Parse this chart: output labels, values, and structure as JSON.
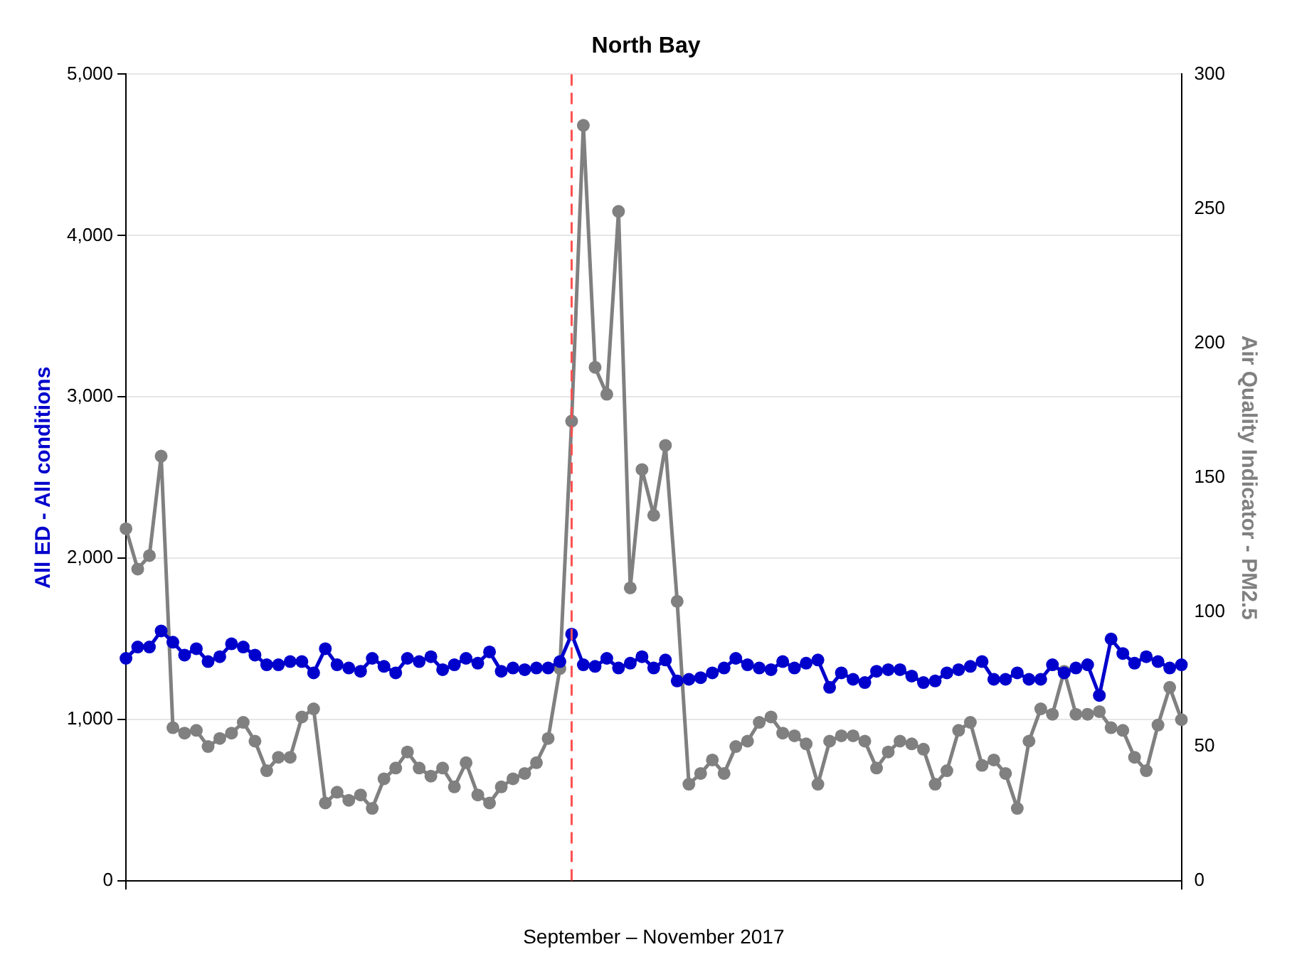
{
  "chart_data": {
    "type": "line",
    "title": "North Bay",
    "xlabel": "September – November 2017",
    "ylabel": "All ED - All conditions",
    "y2label": "Air Quality Indicator - PM2.5",
    "categories": [
      null,
      null,
      null,
      null,
      null,
      null,
      null,
      null,
      null,
      null,
      null,
      null,
      null,
      null,
      null,
      null,
      null,
      null,
      null,
      null,
      null,
      null,
      null,
      null,
      null,
      null,
      null,
      null,
      null,
      null,
      null,
      null,
      null,
      null,
      null,
      null,
      null,
      null,
      null,
      null,
      null,
      null,
      null,
      null,
      null,
      null,
      null,
      null,
      null,
      null,
      null,
      null,
      null,
      null,
      null,
      null,
      null,
      null,
      null,
      null,
      null,
      null,
      null,
      null,
      null,
      null,
      null,
      null,
      null,
      null,
      null,
      null,
      null,
      null,
      null,
      null,
      null,
      null,
      null,
      null,
      null,
      null,
      null,
      null,
      null,
      null,
      null,
      null,
      null,
      null,
      null
    ],
    "series": [
      {
        "color": "#0000cc",
        "values": [
          1380,
          1450,
          1450,
          1550,
          1480,
          1400,
          1440,
          1360,
          1390,
          1470,
          1450,
          1400,
          1340,
          1340,
          1360,
          1360,
          1290,
          1440,
          1340,
          1320,
          1300,
          1380,
          1330,
          1290,
          1380,
          1360,
          1390,
          1310,
          1340,
          1380,
          1350,
          1420,
          1300,
          1320,
          1310,
          1320,
          1320,
          1360,
          1530,
          1340,
          1330,
          1380,
          1320,
          1350,
          1390,
          1320,
          1370,
          1240,
          1250,
          1260,
          1290,
          1320,
          1380,
          1340,
          1320,
          1310,
          1360,
          1320,
          1350,
          1370,
          1200,
          1290,
          1250,
          1230,
          1300,
          1310,
          1310,
          1270,
          1230,
          1240,
          1290,
          1310,
          1330,
          1360,
          1250,
          1250,
          1290,
          1250,
          1250,
          1340,
          1290,
          1320,
          1340,
          1150,
          1500,
          1410,
          1350,
          1390,
          1360,
          1320,
          1340
        ]
      },
      {
        "color": "#808080",
        "axis": "y2",
        "values": [
          131,
          116,
          121,
          158,
          57,
          55,
          56,
          50,
          53,
          55,
          59,
          52,
          41,
          46,
          46,
          61,
          64,
          29,
          33,
          30,
          32,
          27,
          38,
          42,
          48,
          42,
          39,
          42,
          35,
          44,
          32,
          29,
          35,
          38,
          40,
          44,
          53,
          79,
          171,
          281,
          191,
          181,
          249,
          109,
          153,
          136,
          162,
          104,
          36,
          40,
          45,
          40,
          50,
          52,
          59,
          61,
          55,
          54,
          51,
          36,
          52,
          54,
          54,
          52,
          42,
          48,
          52,
          51,
          49,
          36,
          41,
          56,
          59,
          43,
          45,
          40,
          27,
          52,
          64,
          62,
          78,
          62,
          62,
          63,
          57,
          56,
          46,
          41,
          58,
          72,
          60
        ]
      }
    ],
    "ylim": [
      0,
      5000
    ],
    "yticks": [
      {
        "value": 0,
        "label": "0"
      },
      {
        "value": 1000,
        "label": "1,000"
      },
      {
        "value": 2000,
        "label": "2,000"
      },
      {
        "value": 3000,
        "label": "3,000"
      },
      {
        "value": 4000,
        "label": "4,000"
      },
      {
        "value": 5000,
        "label": "5,000"
      }
    ],
    "y2lim": [
      0,
      300
    ],
    "y2ticks": [
      0,
      50,
      100,
      150,
      200,
      250,
      300
    ],
    "grid": true,
    "legend": false,
    "marker": "circle",
    "line_style": "solid"
  }
}
